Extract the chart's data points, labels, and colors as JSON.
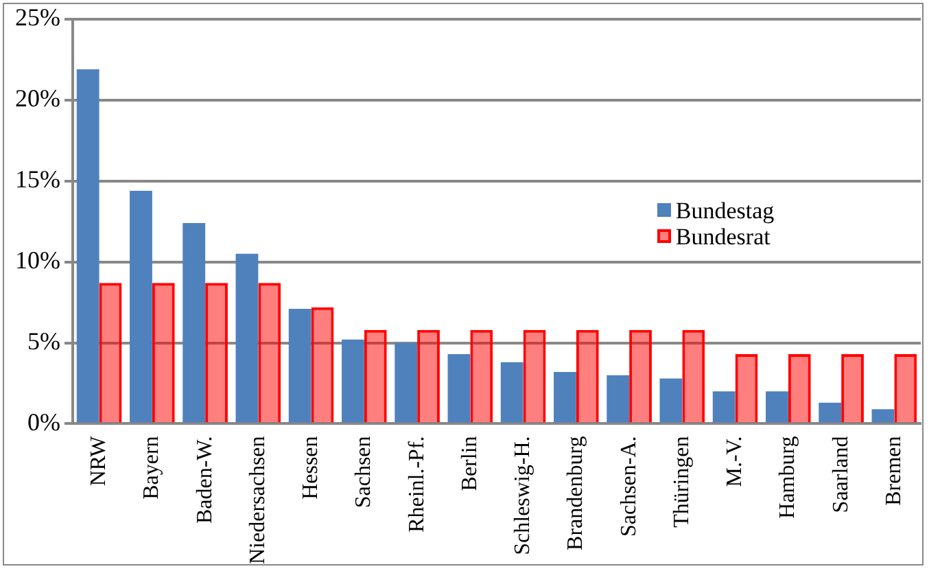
{
  "chart_data": {
    "type": "bar",
    "categories": [
      "NRW",
      "Bayern",
      "Baden-W.",
      "Niedersachsen",
      "Hessen",
      "Sachsen",
      "Rheinl.-Pf.",
      "Berlin",
      "Schleswig-H.",
      "Brandenburg",
      "Sachsen-A.",
      "Thüringen",
      "M.-V.",
      "Hamburg",
      "Saarland",
      "Bremen"
    ],
    "series": [
      {
        "name": "Bundestag",
        "color": "#4f81bd",
        "values": [
          21.9,
          14.4,
          12.4,
          10.5,
          7.1,
          5.2,
          5.0,
          4.3,
          3.8,
          3.2,
          3.0,
          2.8,
          2.0,
          2.0,
          1.3,
          0.9
        ]
      },
      {
        "name": "Bundesrat",
        "color": "#ff0000",
        "values": [
          8.7,
          8.7,
          8.7,
          8.7,
          7.2,
          5.8,
          5.8,
          5.8,
          5.8,
          5.8,
          5.8,
          5.8,
          4.3,
          4.3,
          4.3,
          4.3
        ]
      }
    ],
    "ylim": [
      0,
      25
    ],
    "yticks": [
      {
        "value": 0,
        "label": "0%"
      },
      {
        "value": 5,
        "label": "5%"
      },
      {
        "value": 10,
        "label": "10%"
      },
      {
        "value": 15,
        "label": "15%"
      },
      {
        "value": 20,
        "label": "20%"
      },
      {
        "value": 25,
        "label": "25%"
      }
    ],
    "grid": "y",
    "legend": "right"
  }
}
